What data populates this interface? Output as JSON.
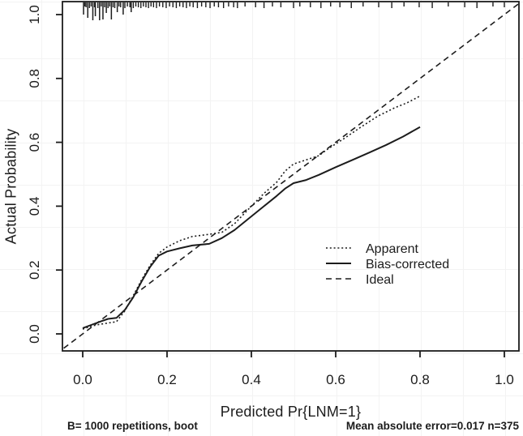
{
  "chart_data": {
    "type": "line",
    "title": "",
    "xlabel": "Predicted Pr{LNM=1}",
    "ylabel": "Actual Probability",
    "xlim": [
      -0.045,
      1.04
    ],
    "ylim": [
      -0.055,
      1.045
    ],
    "x_ticks": [
      0.0,
      0.2,
      0.4,
      0.6,
      0.8,
      1.0
    ],
    "y_ticks": [
      0.0,
      0.2,
      0.4,
      0.6,
      0.8,
      1.0
    ],
    "x_tick_labels": [
      "0.0",
      "0.2",
      "0.4",
      "0.6",
      "0.8",
      "1.0"
    ],
    "y_tick_labels": [
      "0.0",
      "0.2",
      "0.4",
      "0.6",
      "0.8",
      "1.0"
    ],
    "grid": "off (faint uniform screen grid only)",
    "legend_position": "inside-right-center",
    "series": [
      {
        "name": "Apparent",
        "style": "dotted",
        "points": [
          [
            0.0,
            0.015
          ],
          [
            0.02,
            0.024
          ],
          [
            0.04,
            0.03
          ],
          [
            0.06,
            0.034
          ],
          [
            0.08,
            0.038
          ],
          [
            0.1,
            0.072
          ],
          [
            0.12,
            0.12
          ],
          [
            0.14,
            0.17
          ],
          [
            0.16,
            0.215
          ],
          [
            0.18,
            0.252
          ],
          [
            0.2,
            0.272
          ],
          [
            0.23,
            0.292
          ],
          [
            0.26,
            0.305
          ],
          [
            0.3,
            0.312
          ],
          [
            0.33,
            0.318
          ],
          [
            0.36,
            0.345
          ],
          [
            0.4,
            0.4
          ],
          [
            0.43,
            0.44
          ],
          [
            0.46,
            0.475
          ],
          [
            0.48,
            0.51
          ],
          [
            0.5,
            0.532
          ],
          [
            0.53,
            0.545
          ],
          [
            0.56,
            0.558
          ],
          [
            0.58,
            0.578
          ],
          [
            0.62,
            0.612
          ],
          [
            0.66,
            0.648
          ],
          [
            0.7,
            0.682
          ],
          [
            0.74,
            0.708
          ],
          [
            0.77,
            0.724
          ],
          [
            0.8,
            0.745
          ]
        ]
      },
      {
        "name": "Bias-corrected",
        "style": "solid",
        "points": [
          [
            0.0,
            0.018
          ],
          [
            0.02,
            0.028
          ],
          [
            0.045,
            0.04
          ],
          [
            0.06,
            0.047
          ],
          [
            0.08,
            0.05
          ],
          [
            0.1,
            0.075
          ],
          [
            0.12,
            0.115
          ],
          [
            0.14,
            0.165
          ],
          [
            0.16,
            0.21
          ],
          [
            0.18,
            0.245
          ],
          [
            0.2,
            0.258
          ],
          [
            0.23,
            0.268
          ],
          [
            0.26,
            0.277
          ],
          [
            0.3,
            0.282
          ],
          [
            0.33,
            0.3
          ],
          [
            0.36,
            0.325
          ],
          [
            0.4,
            0.368
          ],
          [
            0.43,
            0.4
          ],
          [
            0.46,
            0.432
          ],
          [
            0.48,
            0.455
          ],
          [
            0.5,
            0.472
          ],
          [
            0.53,
            0.482
          ],
          [
            0.56,
            0.498
          ],
          [
            0.6,
            0.522
          ],
          [
            0.64,
            0.545
          ],
          [
            0.68,
            0.568
          ],
          [
            0.72,
            0.592
          ],
          [
            0.76,
            0.618
          ],
          [
            0.8,
            0.648
          ]
        ]
      },
      {
        "name": "Ideal",
        "style": "dashed",
        "points": [
          [
            -0.045,
            -0.045
          ],
          [
            1.038,
            1.038
          ]
        ]
      }
    ],
    "rug": {
      "position": "top",
      "long_ticks": [
        [
          0.002,
          15
        ],
        [
          0.012,
          19
        ],
        [
          0.024,
          22
        ],
        [
          0.03,
          17
        ],
        [
          0.04,
          22
        ],
        [
          0.048,
          21
        ],
        [
          0.056,
          13
        ],
        [
          0.068,
          21
        ],
        [
          0.082,
          12
        ],
        [
          0.096,
          15
        ],
        [
          0.115,
          12
        ]
      ],
      "short_ticks": [
        0.005,
        0.008,
        0.016,
        0.02,
        0.028,
        0.036,
        0.044,
        0.052,
        0.06,
        0.064,
        0.072,
        0.076,
        0.086,
        0.09,
        0.1,
        0.106,
        0.112,
        0.12,
        0.126,
        0.132,
        0.138,
        0.144,
        0.15,
        0.156,
        0.162,
        0.168,
        0.175,
        0.182,
        0.19,
        0.198,
        0.206,
        0.214,
        0.222,
        0.23,
        0.238,
        0.246,
        0.254,
        0.262,
        0.272,
        0.282,
        0.292,
        0.302,
        0.312,
        0.322,
        0.334,
        0.346,
        0.358,
        0.367,
        0.385,
        0.41,
        0.43,
        0.45,
        0.47,
        0.5,
        0.515,
        0.54,
        0.565,
        0.588,
        0.61,
        0.637,
        0.665,
        0.702,
        0.733,
        0.762,
        0.798,
        0.829,
        0.867,
        0.906,
        0.935,
        0.973,
        1.0
      ]
    },
    "annotations": {
      "footer_left": "B= 1000 repetitions, boot",
      "footer_right": "Mean absolute error=0.017 n=375"
    }
  },
  "colors": {
    "line": "#1c1c1c",
    "background": "#ffffff",
    "screen_grid": "#f3f3f3"
  }
}
